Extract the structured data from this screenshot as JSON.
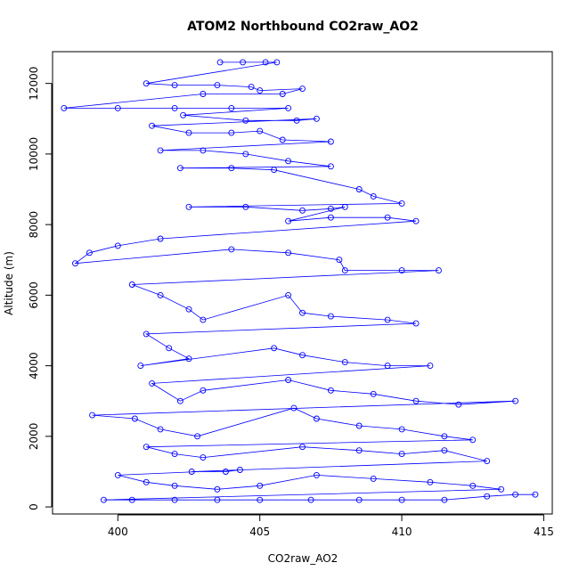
{
  "chart_data": {
    "type": "scatter",
    "title": "ATOM2 Northbound CO2raw_AO2",
    "xlabel": "CO2raw_AO2",
    "ylabel": "Altitude (m)",
    "xlim": [
      397.7,
      415.3
    ],
    "ylim": [
      -200,
      12900
    ],
    "x_ticks": [
      400,
      405,
      410,
      415
    ],
    "y_ticks": [
      0,
      2000,
      4000,
      6000,
      8000,
      10000,
      12000
    ],
    "grid": false,
    "legend": "none",
    "marker": "open circle",
    "lines_connecting_points": true,
    "color": "#0000ff",
    "series": [
      {
        "values_xy": [
          [
            403.6,
            12600
          ],
          [
            404.4,
            12600
          ],
          [
            405.2,
            12600
          ],
          [
            405.6,
            12600
          ],
          [
            401.0,
            12000
          ],
          [
            402.0,
            11950
          ],
          [
            403.5,
            11950
          ],
          [
            404.7,
            11900
          ],
          [
            405.0,
            11800
          ],
          [
            406.5,
            11850
          ],
          [
            405.8,
            11700
          ],
          [
            403.0,
            11700
          ],
          [
            398.1,
            11300
          ],
          [
            400.0,
            11300
          ],
          [
            402.0,
            11300
          ],
          [
            404.0,
            11300
          ],
          [
            406.0,
            11300
          ],
          [
            402.3,
            11100
          ],
          [
            404.5,
            10950
          ],
          [
            406.3,
            10950
          ],
          [
            407.0,
            11000
          ],
          [
            401.2,
            10800
          ],
          [
            402.5,
            10600
          ],
          [
            404.0,
            10600
          ],
          [
            405.0,
            10650
          ],
          [
            405.8,
            10400
          ],
          [
            407.5,
            10350
          ],
          [
            401.5,
            10100
          ],
          [
            403.0,
            10100
          ],
          [
            404.5,
            10000
          ],
          [
            406.0,
            9800
          ],
          [
            407.5,
            9650
          ],
          [
            402.2,
            9600
          ],
          [
            404.0,
            9600
          ],
          [
            405.5,
            9550
          ],
          [
            408.5,
            9000
          ],
          [
            409.0,
            8800
          ],
          [
            410.0,
            8600
          ],
          [
            402.5,
            8500
          ],
          [
            404.5,
            8500
          ],
          [
            406.5,
            8400
          ],
          [
            407.5,
            8450
          ],
          [
            408.0,
            8500
          ],
          [
            406.0,
            8100
          ],
          [
            407.5,
            8200
          ],
          [
            409.5,
            8200
          ],
          [
            410.5,
            8100
          ],
          [
            401.5,
            7600
          ],
          [
            400.0,
            7400
          ],
          [
            399.0,
            7200
          ],
          [
            398.5,
            6900
          ],
          [
            404.0,
            7300
          ],
          [
            406.0,
            7200
          ],
          [
            407.8,
            7000
          ],
          [
            408.0,
            6700
          ],
          [
            410.0,
            6700
          ],
          [
            411.3,
            6700
          ],
          [
            400.5,
            6300
          ],
          [
            401.5,
            6000
          ],
          [
            402.5,
            5600
          ],
          [
            403.0,
            5300
          ],
          [
            406.0,
            6000
          ],
          [
            406.5,
            5500
          ],
          [
            407.5,
            5400
          ],
          [
            409.5,
            5300
          ],
          [
            410.5,
            5200
          ],
          [
            401.0,
            4900
          ],
          [
            401.8,
            4500
          ],
          [
            402.5,
            4200
          ],
          [
            400.8,
            4000
          ],
          [
            405.5,
            4500
          ],
          [
            406.5,
            4300
          ],
          [
            408.0,
            4100
          ],
          [
            409.5,
            4000
          ],
          [
            411.0,
            4000
          ],
          [
            401.2,
            3500
          ],
          [
            402.2,
            3000
          ],
          [
            403.0,
            3300
          ],
          [
            406.0,
            3600
          ],
          [
            407.5,
            3300
          ],
          [
            409.0,
            3200
          ],
          [
            410.5,
            3000
          ],
          [
            412.0,
            2900
          ],
          [
            414.0,
            3000
          ],
          [
            399.1,
            2600
          ],
          [
            400.6,
            2500
          ],
          [
            401.5,
            2200
          ],
          [
            402.8,
            2000
          ],
          [
            406.2,
            2800
          ],
          [
            407.0,
            2500
          ],
          [
            408.5,
            2300
          ],
          [
            410.0,
            2200
          ],
          [
            411.5,
            2000
          ],
          [
            412.5,
            1900
          ],
          [
            401.0,
            1700
          ],
          [
            402.0,
            1500
          ],
          [
            403.0,
            1400
          ],
          [
            406.5,
            1700
          ],
          [
            408.5,
            1600
          ],
          [
            410.0,
            1500
          ],
          [
            411.5,
            1600
          ],
          [
            413.0,
            1300
          ],
          [
            402.6,
            1000
          ],
          [
            403.8,
            1000
          ],
          [
            404.3,
            1050
          ],
          [
            400.0,
            900
          ],
          [
            401.0,
            700
          ],
          [
            402.0,
            600
          ],
          [
            403.5,
            500
          ],
          [
            405.0,
            600
          ],
          [
            407.0,
            900
          ],
          [
            409.0,
            800
          ],
          [
            411.0,
            700
          ],
          [
            412.5,
            600
          ],
          [
            413.5,
            500
          ],
          [
            399.5,
            200
          ],
          [
            400.5,
            200
          ],
          [
            402.0,
            200
          ],
          [
            403.5,
            200
          ],
          [
            405.0,
            200
          ],
          [
            406.8,
            200
          ],
          [
            408.5,
            200
          ],
          [
            410.0,
            200
          ],
          [
            411.5,
            200
          ],
          [
            413.0,
            300
          ],
          [
            414.0,
            350
          ],
          [
            414.7,
            350
          ]
        ]
      }
    ]
  }
}
